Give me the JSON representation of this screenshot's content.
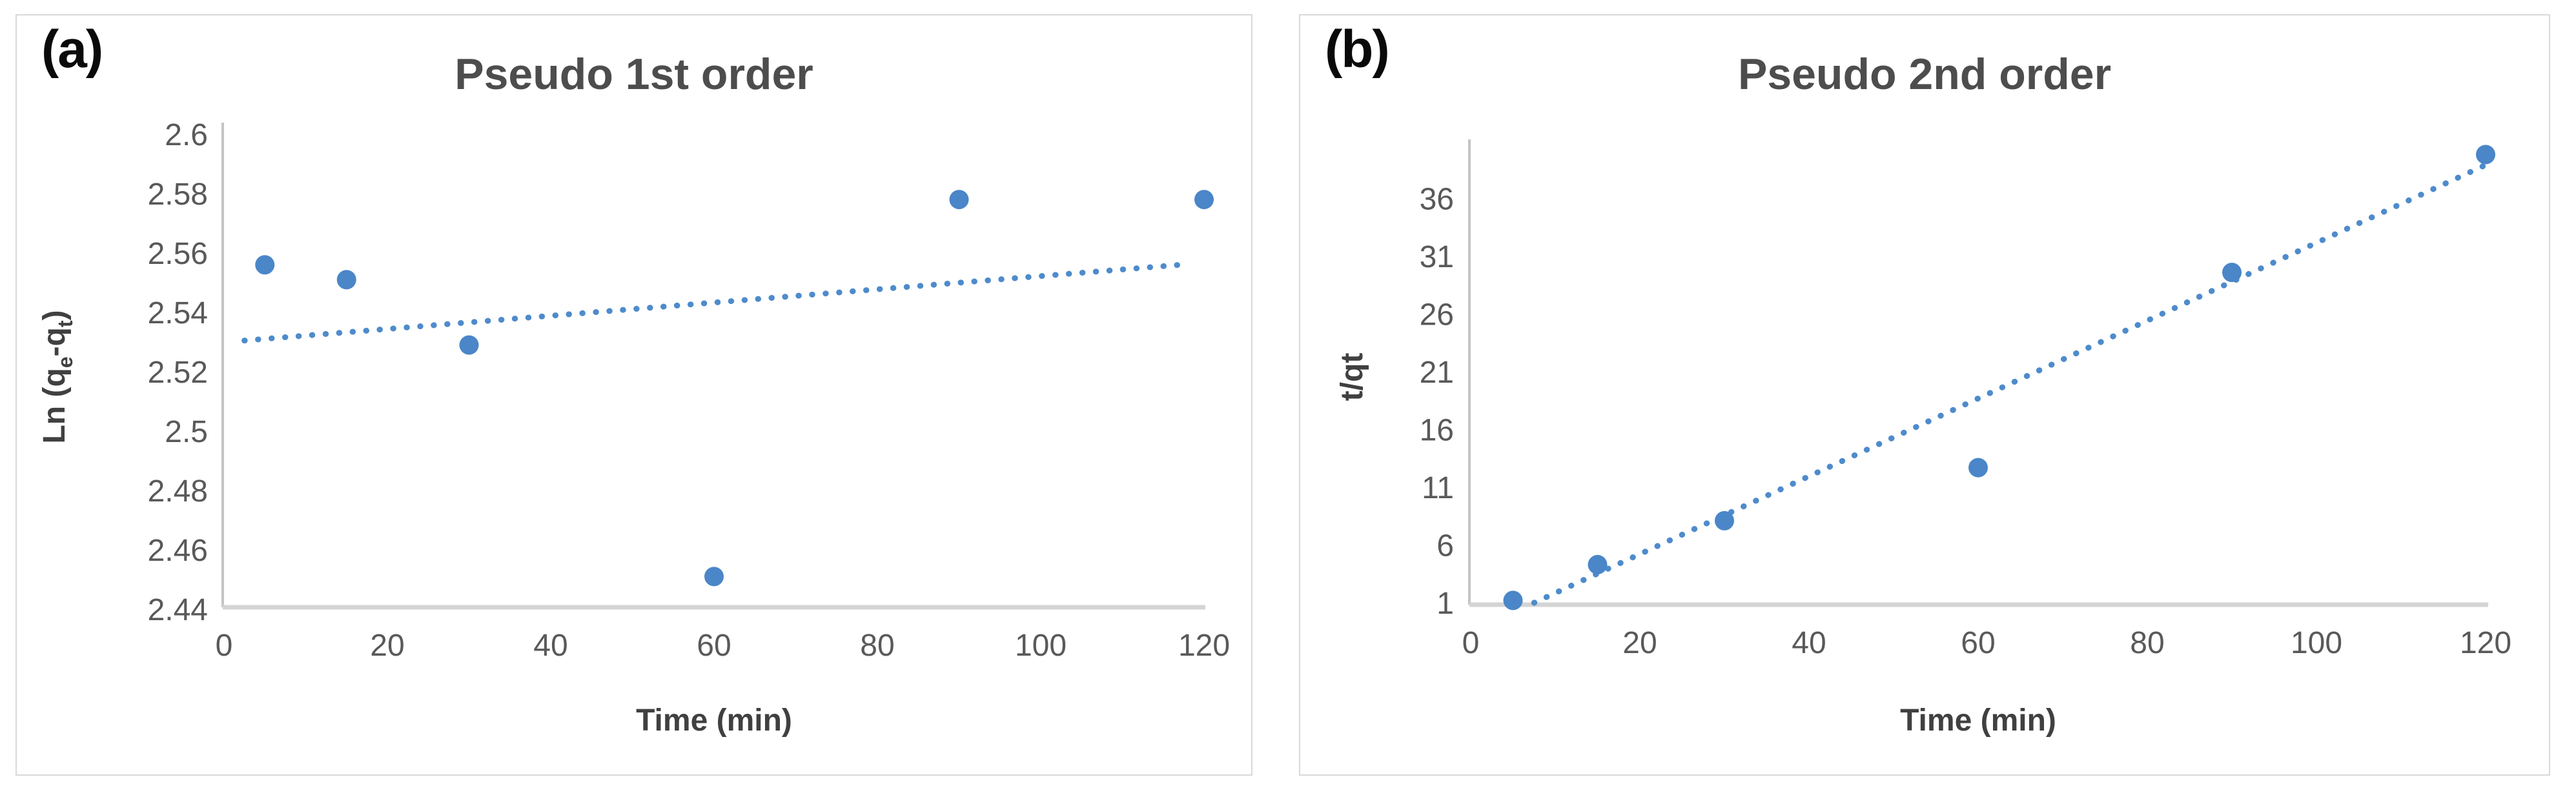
{
  "figure": {
    "background": "#ffffff",
    "accent_blue": "#4a86c8",
    "trend_blue": "#4e8bcb",
    "axis_line_color": "#c4c4c4",
    "baseline_color": "#d4d4d4",
    "title_color": "#4d4d4d",
    "tick_color": "#595959"
  },
  "panels": [
    {
      "label": "(a)"
    },
    {
      "label": "(b)"
    }
  ],
  "chart_data": [
    {
      "id": "pseudo-1st-order",
      "type": "scatter",
      "title": "Pseudo 1st order",
      "xlabel": "Time (min)",
      "ylabel": "Ln (qe-qt)",
      "ylabel_parts": {
        "pre": "Ln (q",
        "sub1": "e",
        "mid": "-q",
        "sub2": "t",
        "post": ")"
      },
      "x": [
        5,
        15,
        30,
        60,
        90,
        120
      ],
      "y": [
        2.556,
        2.551,
        2.529,
        2.451,
        2.578,
        2.578
      ],
      "trendline": {
        "style": "dotted",
        "x1": 2.5,
        "y1": 2.5305,
        "x2": 117,
        "y2": 2.556
      },
      "xlim": [
        0,
        120
      ],
      "ylim": [
        2.44,
        2.6
      ],
      "xtick_labels": [
        "0",
        "20",
        "40",
        "60",
        "80",
        "100",
        "120"
      ],
      "xticks": [
        0,
        20,
        40,
        60,
        80,
        100,
        120
      ],
      "ytick_labels": [
        "2.44",
        "2.46",
        "2.48",
        "2.5",
        "2.52",
        "2.54",
        "2.56",
        "2.58",
        "2.6"
      ],
      "yticks": [
        2.44,
        2.46,
        2.48,
        2.5,
        2.52,
        2.54,
        2.56,
        2.58,
        2.6
      ],
      "grid": false,
      "legend": null
    },
    {
      "id": "pseudo-2nd-order",
      "type": "scatter",
      "title": "Pseudo 2nd order",
      "xlabel": "Time (min)",
      "ylabel": "t/qt",
      "x": [
        5,
        15,
        30,
        60,
        90,
        120
      ],
      "y": [
        1.2,
        4.3,
        8.1,
        12.7,
        29.6,
        39.8
      ],
      "trendline": {
        "style": "dotted",
        "x1": 7.5,
        "y1": 1.0,
        "x2": 120,
        "y2": 38.9
      },
      "xlim": [
        0,
        120
      ],
      "ylim": [
        1,
        40.5
      ],
      "xtick_labels": [
        "0",
        "20",
        "40",
        "60",
        "80",
        "100",
        "120"
      ],
      "xticks": [
        0,
        20,
        40,
        60,
        80,
        100,
        120
      ],
      "ytick_labels": [
        "1",
        "6",
        "11",
        "16",
        "21",
        "26",
        "31",
        "36"
      ],
      "yticks": [
        1,
        6,
        11,
        16,
        21,
        26,
        31,
        36
      ],
      "grid": false,
      "legend": null
    }
  ]
}
